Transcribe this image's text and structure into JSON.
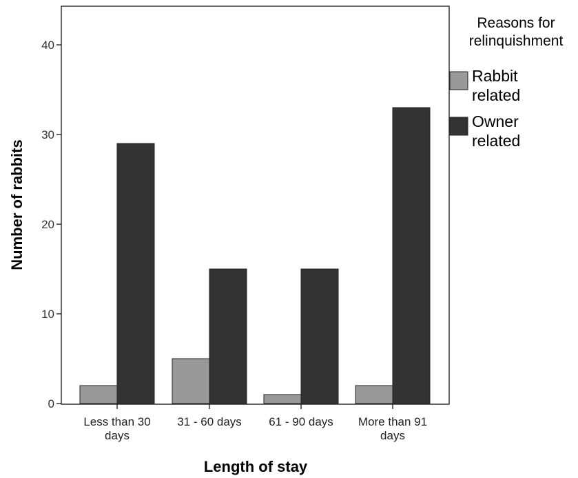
{
  "chart_data": {
    "type": "bar",
    "xlabel": "Length of stay",
    "ylabel": "Number of rabbits",
    "categories": [
      [
        "Less than 30",
        "days"
      ],
      [
        "31 - 60 days"
      ],
      [
        "61 - 90 days"
      ],
      [
        "More than 91",
        "days"
      ]
    ],
    "series": [
      {
        "name": [
          "Rabbit",
          "related"
        ],
        "values": [
          2,
          5,
          1,
          2
        ],
        "color": "#999999"
      },
      {
        "name": [
          "Owner",
          "related"
        ],
        "values": [
          29,
          15,
          15,
          33
        ],
        "color": "#333333"
      }
    ],
    "ylim": [
      0,
      44
    ],
    "yticks": [
      0,
      10,
      20,
      30,
      40
    ],
    "legend": {
      "title": [
        "Reasons for",
        "relinquishment"
      ],
      "placement": "right"
    },
    "grid": false
  }
}
